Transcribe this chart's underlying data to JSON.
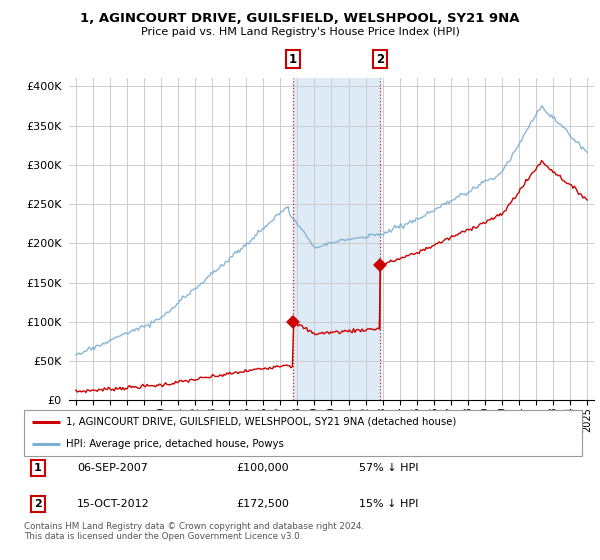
{
  "title": "1, AGINCOURT DRIVE, GUILSFIELD, WELSHPOOL, SY21 9NA",
  "subtitle": "Price paid vs. HM Land Registry's House Price Index (HPI)",
  "ylabel_ticks": [
    "£0",
    "£50K",
    "£100K",
    "£150K",
    "£200K",
    "£250K",
    "£300K",
    "£350K",
    "£400K"
  ],
  "ytick_values": [
    0,
    50000,
    100000,
    150000,
    200000,
    250000,
    300000,
    350000,
    400000
  ],
  "ylim": [
    0,
    410000
  ],
  "sale1_t": 2007.75,
  "sale1_price": 100000,
  "sale2_t": 2012.83,
  "sale2_price": 172500,
  "legend_house": "1, AGINCOURT DRIVE, GUILSFIELD, WELSHPOOL, SY21 9NA (detached house)",
  "legend_hpi": "HPI: Average price, detached house, Powys",
  "table_row1": [
    "1",
    "06-SEP-2007",
    "£100,000",
    "57% ↓ HPI"
  ],
  "table_row2": [
    "2",
    "15-OCT-2012",
    "£172,500",
    "15% ↓ HPI"
  ],
  "footnote": "Contains HM Land Registry data © Crown copyright and database right 2024.\nThis data is licensed under the Open Government Licence v3.0.",
  "house_color": "#cc0000",
  "hpi_color": "#7bafd4",
  "shade_color": "#deeaf5",
  "grid_color": "#cccccc",
  "bg_color": "#ffffff",
  "xlim_left": 1994.6,
  "xlim_right": 2025.4
}
